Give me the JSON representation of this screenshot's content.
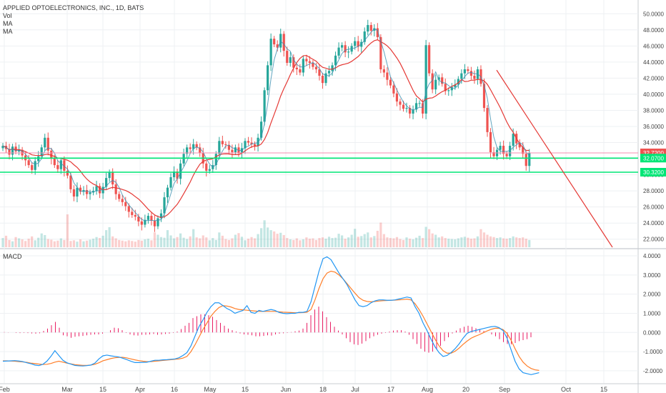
{
  "header": {
    "title": "APPLIED OPTOELECTRONICS, INC., 1D, BATS",
    "legend_vol": "Vol",
    "legend_ma1": "MA",
    "legend_ma2": "MA"
  },
  "macd_label": "MACD",
  "colors": {
    "up": "#26a69a",
    "down": "#ef5350",
    "ma": "#e53935",
    "ma_fast": "#3a8fb0",
    "macd": "#2196f3",
    "signal": "#ff7f2a",
    "hist": "#e91e63",
    "level_green": "#00e676",
    "level_pink": "#f48fb1",
    "grid": "#eef0f3"
  },
  "chart_data": [
    {
      "type": "candlestick",
      "title": "APPLIED OPTOELECTRONICS, INC., 1D, BATS",
      "ylim": [
        21,
        51
      ],
      "y_ticks": [
        "22.0000",
        "24.0000",
        "26.0000",
        "28.0000",
        "30.0000",
        "32.0000",
        "34.0000",
        "36.0000",
        "38.0000",
        "40.0000",
        "42.0000",
        "44.0000",
        "46.0000",
        "48.0000",
        "50.0000"
      ],
      "x_ticks": [
        "Feb",
        "Mar",
        "15",
        "Apr",
        "16",
        "May",
        "15",
        "Jun",
        "18",
        "Jul",
        "17",
        "Aug",
        "20",
        "Sep",
        "Oct",
        "15"
      ],
      "price_badges": [
        {
          "value": "32.7200",
          "color": "#ef5350"
        },
        {
          "value": "32.0700",
          "color": "#00e676"
        },
        {
          "value": "30.3200",
          "color": "#00e676"
        }
      ],
      "levels": [
        {
          "value": 32.72,
          "color": "#f48fb1"
        },
        {
          "value": 32.07,
          "color": "#00e676"
        },
        {
          "value": 30.32,
          "color": "#00e676"
        }
      ],
      "trendline": [
        {
          "x": 695,
          "y": 43.0
        },
        {
          "x": 857,
          "y": 21.0
        }
      ],
      "close": [
        33.6,
        33.2,
        32.5,
        33.5,
        32.9,
        33.1,
        32.4,
        31.8,
        31.2,
        30.6,
        31.7,
        32.3,
        33.4,
        34.6,
        33.0,
        32.0,
        31.2,
        30.7,
        31.8,
        30.5,
        29.9,
        28.2,
        27.3,
        28.4,
        27.9,
        28.1,
        27.6,
        27.8,
        28.0,
        28.6,
        27.7,
        28.5,
        29.6,
        30.3,
        28.8,
        27.6,
        27.0,
        26.6,
        26.1,
        25.4,
        25.0,
        24.8,
        24.2,
        23.8,
        24.4,
        24.9,
        24.3,
        23.6,
        24.6,
        25.2,
        27.2,
        28.4,
        29.7,
        30.4,
        29.5,
        31.4,
        32.6,
        33.4,
        33.2,
        33.8,
        33.4,
        32.7,
        31.4,
        30.5,
        30.7,
        31.2,
        32.6,
        34.2,
        33.8,
        33.7,
        33.1,
        32.8,
        33.4,
        32.7,
        33.3,
        34.2,
        34.0,
        33.8,
        33.6,
        34.6,
        36.6,
        40.5,
        43.6,
        46.9,
        46.2,
        45.8,
        47.5,
        45.4,
        43.9,
        44.6,
        43.3,
        43.1,
        42.7,
        44.4,
        44.1,
        43.9,
        43.4,
        43.1,
        42.3,
        41.4,
        42.6,
        42.9,
        43.6,
        44.8,
        45.8,
        46.1,
        45.2,
        45.3,
        46.0,
        46.6,
        45.9,
        46.5,
        47.8,
        48.6,
        47.9,
        48.2,
        47.1,
        43.1,
        42.7,
        41.8,
        41.1,
        40.1,
        39.1,
        38.7,
        38.2,
        38.3,
        37.6,
        38.1,
        38.9,
        38.9,
        37.6,
        46.1,
        42.6,
        40.6,
        41.8,
        42.1,
        41.3,
        40.4,
        40.5,
        40.9,
        41.2,
        41.9,
        42.6,
        43.1,
        42.9,
        42.3,
        41.9,
        43.1,
        41.3,
        38.3,
        35.3,
        32.8,
        32.3,
        33.1,
        33.6,
        32.6,
        32.3,
        33.6,
        35.1,
        33.9,
        33.4,
        32.6,
        31.1,
        32.7
      ],
      "volume": [
        0.28,
        0.35,
        0.22,
        0.18,
        0.31,
        0.27,
        0.24,
        0.19,
        0.26,
        0.33,
        0.21,
        0.29,
        0.42,
        0.37,
        0.25,
        0.23,
        0.18,
        0.2,
        0.27,
        0.22,
        1.0,
        0.19,
        0.21,
        0.17,
        0.24,
        0.18,
        0.2,
        0.23,
        0.26,
        0.31,
        0.28,
        0.35,
        0.52,
        0.61,
        0.33,
        0.27,
        0.22,
        0.2,
        0.18,
        0.21,
        0.19,
        0.17,
        0.22,
        0.2,
        0.24,
        0.26,
        0.21,
        0.45,
        0.38,
        0.31,
        0.29,
        0.52,
        0.36,
        0.27,
        0.31,
        0.42,
        0.29,
        0.25,
        0.33,
        0.55,
        0.3,
        0.27,
        0.36,
        0.3,
        0.21,
        0.28,
        0.22,
        0.45,
        0.35,
        0.25,
        0.22,
        0.27,
        0.38,
        0.43,
        0.32,
        0.21,
        0.26,
        0.31,
        0.27,
        0.4,
        0.58,
        0.82,
        0.6,
        0.52,
        0.48,
        0.41,
        0.44,
        0.37,
        0.28,
        0.24,
        0.22,
        0.27,
        0.21,
        0.24,
        0.3,
        0.26,
        0.27,
        0.22,
        0.28,
        0.3,
        0.26,
        0.32,
        0.28,
        0.29,
        0.41,
        0.36,
        0.26,
        0.3,
        0.38,
        0.56,
        0.32,
        0.34,
        0.4,
        0.45,
        0.3,
        0.34,
        0.5,
        0.75,
        0.4,
        0.3,
        0.28,
        0.27,
        0.31,
        0.25,
        0.22,
        0.3,
        0.26,
        0.24,
        0.29,
        0.35,
        0.28,
        0.62,
        0.55,
        0.42,
        0.38,
        0.3,
        0.33,
        0.28,
        0.26,
        0.25,
        0.24,
        0.27,
        0.3,
        0.32,
        0.29,
        0.26,
        0.27,
        0.33,
        0.55,
        0.45,
        0.38,
        0.33,
        0.31,
        0.28,
        0.3,
        0.27,
        0.26,
        0.28,
        0.33,
        0.3,
        0.28,
        0.3,
        0.26,
        0.22
      ]
    },
    {
      "type": "line",
      "title": "MACD",
      "ylim": [
        -2.6,
        4.3
      ],
      "y_ticks": [
        "4.0000",
        "3.0000",
        "2.0000",
        "1.0000",
        "0.0000",
        "-1.0000",
        "-2.0000"
      ],
      "series": [
        {
          "values": [
            -1.5,
            -1.49,
            -1.48,
            -1.47,
            -1.49,
            -1.52,
            -1.58,
            -1.63,
            -1.7,
            -1.73,
            -1.66,
            -1.5,
            -1.25,
            -0.95,
            -1.2,
            -1.45,
            -1.58,
            -1.65,
            -1.72,
            -1.74,
            -1.75,
            -1.73,
            -1.7,
            -1.6,
            -1.38,
            -1.22,
            -1.18,
            -1.22,
            -1.25,
            -1.28,
            -1.35,
            -1.42,
            -1.5,
            -1.57,
            -1.57,
            -1.56,
            -1.55,
            -1.5,
            -1.45,
            -1.45,
            -1.43,
            -1.42,
            -1.4,
            -1.38,
            -1.32,
            -1.2,
            -1.05,
            -0.7,
            -0.2,
            0.3,
            0.65,
            1.05,
            1.35,
            1.55,
            1.55,
            1.4,
            1.25,
            1.15,
            1.0,
            1.08,
            1.15,
            1.4,
            1.05,
            1.0,
            1.15,
            1.1,
            1.15,
            1.2,
            1.15,
            1.05,
            1.0,
            0.98,
            1.0,
            1.0,
            1.05,
            1.05,
            1.1,
            1.6,
            2.4,
            3.2,
            3.85,
            3.95,
            3.8,
            3.45,
            3.1,
            2.8,
            2.5,
            2.1,
            1.7,
            1.4,
            1.35,
            1.4,
            1.55,
            1.65,
            1.7,
            1.7,
            1.68,
            1.68,
            1.7,
            1.75,
            1.8,
            1.85,
            1.8,
            1.35,
            1.0,
            0.5,
            0.1,
            -0.35,
            -0.75,
            -1.05,
            -1.25,
            -1.2,
            -1.05,
            -0.85,
            -0.6,
            -0.3,
            -0.05,
            0.05,
            0.1,
            0.15,
            0.2,
            0.25,
            0.3,
            0.32,
            0.25,
            0.1,
            -0.3,
            -0.9,
            -1.5,
            -1.9,
            -2.1,
            -2.15,
            -2.2,
            -2.15,
            -2.1
          ]
        },
        {
          "values": [
            -1.48,
            -1.48,
            -1.49,
            -1.5,
            -1.52,
            -1.54,
            -1.56,
            -1.6,
            -1.62,
            -1.65,
            -1.67,
            -1.66,
            -1.62,
            -1.55,
            -1.5,
            -1.55,
            -1.6,
            -1.64,
            -1.68,
            -1.7,
            -1.72,
            -1.72,
            -1.7,
            -1.66,
            -1.58,
            -1.48,
            -1.42,
            -1.36,
            -1.32,
            -1.3,
            -1.3,
            -1.33,
            -1.38,
            -1.43,
            -1.47,
            -1.5,
            -1.52,
            -1.52,
            -1.5,
            -1.48,
            -1.46,
            -1.44,
            -1.42,
            -1.4,
            -1.38,
            -1.34,
            -1.25,
            -1.0,
            -0.65,
            -0.25,
            0.15,
            0.5,
            0.85,
            1.1,
            1.3,
            1.4,
            1.38,
            1.33,
            1.25,
            1.2,
            1.18,
            1.16,
            1.14,
            1.12,
            1.1,
            1.1,
            1.1,
            1.1,
            1.1,
            1.08,
            1.06,
            1.05,
            1.04,
            1.03,
            1.03,
            1.04,
            1.06,
            1.2,
            1.7,
            2.3,
            2.8,
            3.1,
            3.2,
            3.15,
            3.0,
            2.8,
            2.55,
            2.3,
            2.05,
            1.82,
            1.68,
            1.62,
            1.6,
            1.62,
            1.64,
            1.66,
            1.67,
            1.68,
            1.69,
            1.7,
            1.72,
            1.74,
            1.7,
            1.5,
            1.2,
            0.85,
            0.45,
            0.05,
            -0.35,
            -0.7,
            -0.95,
            -1.08,
            -1.08,
            -0.98,
            -0.82,
            -0.62,
            -0.45,
            -0.3,
            -0.2,
            -0.12,
            -0.02,
            0.08,
            0.16,
            0.22,
            0.22,
            0.15,
            -0.05,
            -0.4,
            -0.85,
            -1.25,
            -1.55,
            -1.75,
            -1.88,
            -1.95,
            -1.98
          ]
        }
      ],
      "histogram": [
        0.02,
        0.01,
        0.0,
        -0.02,
        -0.03,
        -0.02,
        -0.03,
        -0.05,
        -0.06,
        -0.04,
        0.08,
        0.2,
        0.38,
        0.55,
        0.25,
        -0.15,
        -0.2,
        -0.28,
        -0.22,
        -0.2,
        -0.18,
        -0.15,
        -0.12,
        -0.1,
        -0.1,
        -0.06,
        0.0,
        0.12,
        0.25,
        0.22,
        0.12,
        -0.02,
        -0.1,
        -0.15,
        -0.16,
        -0.12,
        -0.12,
        -0.1,
        -0.08,
        -0.12,
        -0.1,
        -0.08,
        -0.06,
        -0.02,
        0.05,
        0.18,
        0.35,
        0.5,
        0.75,
        0.85,
        0.95,
        0.95,
        0.9,
        0.82,
        0.65,
        0.5,
        0.35,
        0.2,
        0.12,
        0.05,
        -0.05,
        -0.1,
        -0.12,
        -0.15,
        -0.2,
        -0.2,
        -0.18,
        -0.15,
        -0.16,
        -0.1,
        -0.06,
        -0.04,
        -0.02,
        0.02,
        0.06,
        0.1,
        0.2,
        0.5,
        0.9,
        1.2,
        1.35,
        1.1,
        0.8,
        0.55,
        0.3,
        0.1,
        -0.1,
        -0.3,
        -0.5,
        -0.62,
        -0.65,
        -0.58,
        -0.45,
        -0.3,
        -0.2,
        -0.12,
        -0.06,
        -0.02,
        0.05,
        0.1,
        0.12,
        0.12,
        0.05,
        -0.12,
        -0.35,
        -0.6,
        -0.85,
        -1.0,
        -1.05,
        -1.0,
        -0.9,
        -0.7,
        -0.45,
        -0.25,
        -0.05,
        0.1,
        0.22,
        0.3,
        0.35,
        0.3,
        0.22,
        0.15,
        0.08,
        0.0,
        -0.1,
        -0.2,
        -0.35,
        -0.5,
        -0.6,
        -0.62,
        -0.55,
        -0.45,
        -0.4,
        -0.35,
        -0.25
      ]
    }
  ]
}
